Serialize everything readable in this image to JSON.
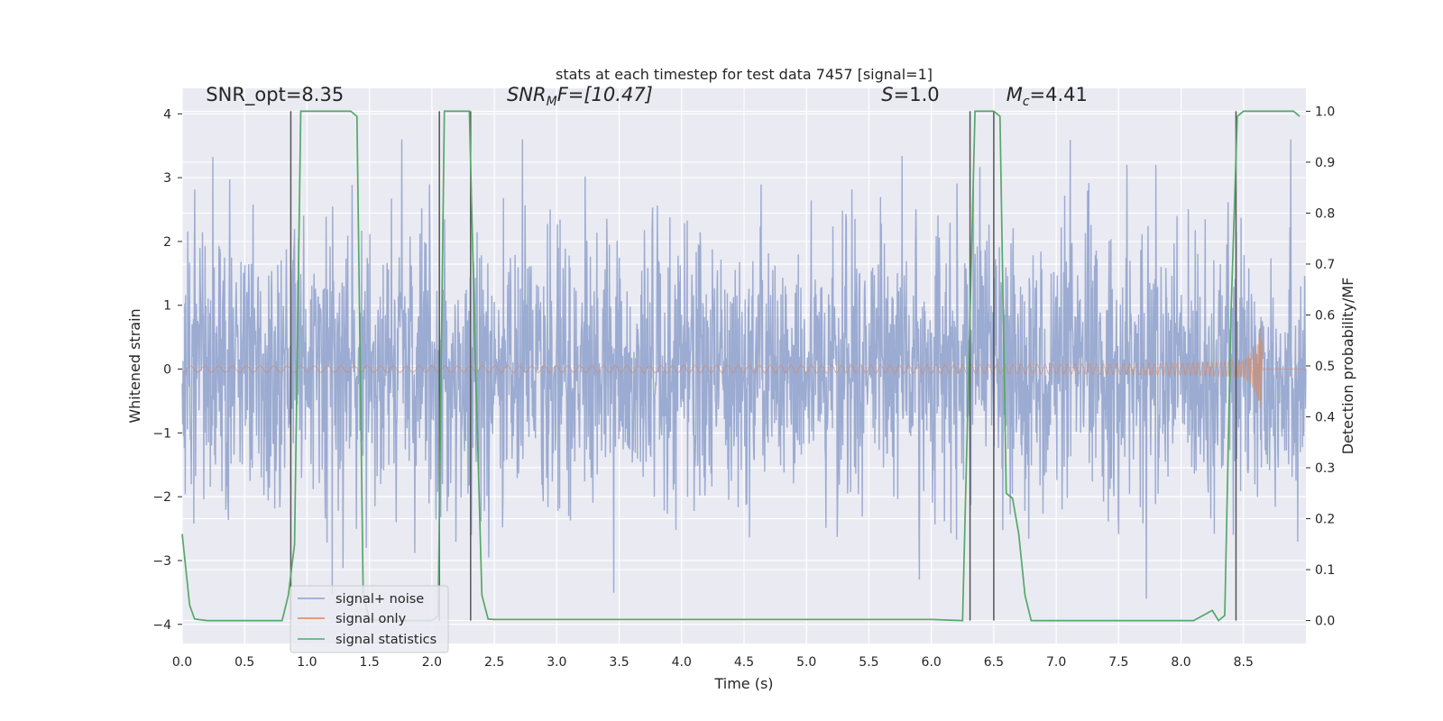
{
  "chart_data": {
    "type": "line",
    "title": "stats at each timestep for test data 7457 [signal=1]",
    "xlabel": "Time (s)",
    "ylabel_left": "Whitened strain",
    "ylabel_right": "Detection probability/MF",
    "xlim": [
      0.0,
      9.0
    ],
    "ylim_left": [
      -4.3,
      4.4
    ],
    "ylim_right": [
      -0.045,
      1.045
    ],
    "x_ticks": [
      "0.0",
      "0.5",
      "1.0",
      "1.5",
      "2.0",
      "2.5",
      "3.0",
      "3.5",
      "4.0",
      "4.5",
      "5.0",
      "5.5",
      "6.0",
      "6.5",
      "7.0",
      "7.5",
      "8.0",
      "8.5"
    ],
    "y_ticks_left": [
      "4",
      "3",
      "2",
      "1",
      "0",
      "−1",
      "−2",
      "−3",
      "−4"
    ],
    "y_ticks_right": [
      "1.0",
      "0.9",
      "0.8",
      "0.7",
      "0.6",
      "0.5",
      "0.4",
      "0.3",
      "0.2",
      "0.1",
      "0.0"
    ],
    "grid": true,
    "legend_placement": "lower-left",
    "annotations": [
      {
        "label": "SNR_opt=8.35",
        "x": 0.19,
        "y": 4.2
      },
      {
        "parts": [
          "SNR",
          "M",
          "F=[10.47]"
        ],
        "x": 2.6,
        "y": 4.2
      },
      {
        "parts": [
          "S",
          "=1.0"
        ],
        "x": 5.6,
        "y": 4.2
      },
      {
        "parts": [
          "M",
          "c",
          "=4.41"
        ],
        "x": 6.6,
        "y": 4.2
      }
    ],
    "series": [
      {
        "name": "signal+ noise",
        "color": "#8da0cb",
        "axis": "left",
        "kind": "noise",
        "sigma": 1.0,
        "peak_abs": 3.6
      },
      {
        "name": "signal only",
        "color": "#dd8452",
        "axis": "left",
        "kind": "chirp",
        "amp_start": 0.05,
        "amp_peak": 0.8,
        "merger_time": 8.65,
        "end_time": 8.65
      },
      {
        "name": "signal statistics",
        "color": "#55a868",
        "axis": "right",
        "x": [
          0.0,
          0.06,
          0.1,
          0.2,
          0.8,
          0.85,
          0.9,
          0.95,
          1.0,
          1.3,
          1.35,
          1.4,
          1.45,
          1.5,
          1.6,
          1.8,
          2.0,
          2.05,
          2.1,
          2.15,
          2.3,
          2.35,
          2.4,
          2.45,
          2.5,
          6.0,
          6.25,
          6.35,
          6.45,
          6.5,
          6.55,
          6.6,
          6.65,
          6.7,
          6.75,
          6.8,
          8.1,
          8.25,
          8.3,
          8.35,
          8.4,
          8.45,
          8.5,
          8.55,
          8.9,
          8.95
        ],
        "y": [
          0.17,
          0.03,
          0.003,
          0.0,
          0.0,
          0.05,
          0.15,
          1.0,
          1.0,
          1.0,
          1.0,
          0.99,
          0.05,
          0.002,
          0.0,
          0.0,
          0.0,
          0.01,
          1.0,
          1.0,
          1.0,
          0.5,
          0.05,
          0.003,
          0.002,
          0.002,
          0.0,
          1.0,
          1.0,
          1.0,
          0.99,
          0.25,
          0.24,
          0.17,
          0.05,
          0.0,
          0.0,
          0.02,
          0.0,
          0.01,
          0.6,
          0.99,
          1.0,
          1.0,
          1.0,
          0.99
        ]
      },
      {
        "name": "",
        "color": "#555555",
        "axis": "right",
        "kind": "vlines",
        "x": [
          0.87,
          2.06,
          2.31,
          6.31,
          6.5,
          8.44
        ],
        "y_range": [
          0.0,
          1.0
        ]
      }
    ]
  }
}
